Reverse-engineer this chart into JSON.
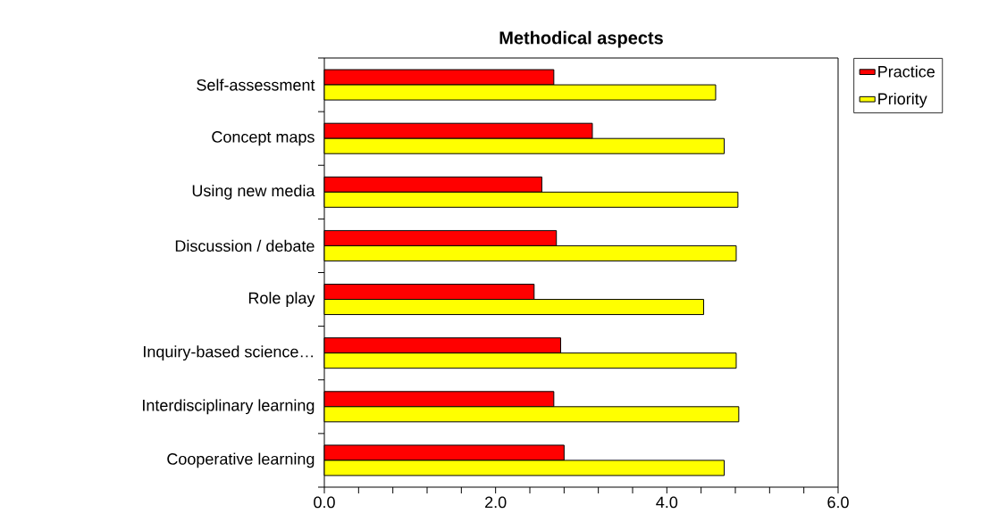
{
  "chart_data": {
    "type": "bar",
    "orientation": "horizontal",
    "title": "Methodical aspects",
    "categories": [
      "Self-assessment",
      "Concept maps",
      "Using new media",
      "Discussion / debate",
      "Role play",
      "Inquiry-based science…",
      "Interdisciplinary learning",
      "Cooperative learning"
    ],
    "series": [
      {
        "name": "Practice",
        "color": "#ff0000",
        "values": [
          2.68,
          3.13,
          2.54,
          2.71,
          2.45,
          2.76,
          2.68,
          2.8
        ]
      },
      {
        "name": "Priority",
        "color": "#ffff00",
        "values": [
          4.57,
          4.67,
          4.83,
          4.81,
          4.43,
          4.81,
          4.84,
          4.67
        ]
      }
    ],
    "xlim": [
      0,
      6
    ],
    "xticks": [
      {
        "value": 0,
        "label": "0.0"
      },
      {
        "value": 0.4,
        "label": null
      },
      {
        "value": 0.8,
        "label": null
      },
      {
        "value": 1.2,
        "label": null
      },
      {
        "value": 1.6,
        "label": null
      },
      {
        "value": 2,
        "label": "2.0"
      },
      {
        "value": 2.4,
        "label": null
      },
      {
        "value": 2.8,
        "label": null
      },
      {
        "value": 3.2,
        "label": null
      },
      {
        "value": 3.6,
        "label": null
      },
      {
        "value": 4,
        "label": "4.0"
      },
      {
        "value": 4.4,
        "label": null
      },
      {
        "value": 4.8,
        "label": null
      },
      {
        "value": 5.2,
        "label": null
      },
      {
        "value": 5.6,
        "label": null
      },
      {
        "value": 6,
        "label": "6.0"
      }
    ],
    "legend": "right",
    "grid": false
  }
}
